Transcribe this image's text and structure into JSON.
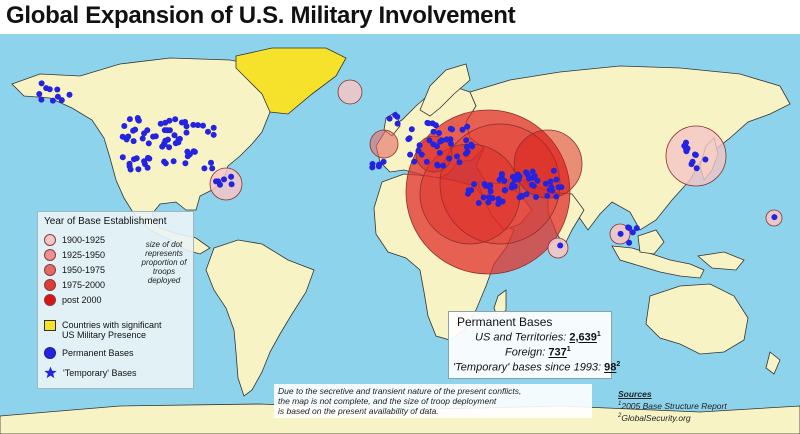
{
  "title": "Global Expansion of U.S. Military Involvement",
  "colors": {
    "ocean": "#8ed3ec",
    "land": "#f8f3c5",
    "presence_yellow": "#f6e22a",
    "base_blue": "#2323e0",
    "period_1900_1925": "#f4c6c6",
    "period_1925_1950": "#ec9090",
    "period_1950_1975": "#e56a66",
    "period_1975_2000": "#df3d34",
    "period_post_2000": "#d81414"
  },
  "legend": {
    "title": "Year of Base Establishment",
    "periods": [
      "1900-1925",
      "1925-1950",
      "1950-1975",
      "1975-2000",
      "post 2000"
    ],
    "size_note": "size of dot represents proportion of troops deployed",
    "presence_line1": "Countries with significant",
    "presence_line2": "US Military Presence",
    "permanent": "Permanent Bases",
    "temporary": "'Temporary' Bases"
  },
  "bases": {
    "heading": "Permanent Bases",
    "us_label": "US and Territories: ",
    "us_value": "2,639",
    "us_note": "1",
    "foreign_label": "Foreign: ",
    "foreign_value": "737",
    "foreign_note": "1",
    "temp_label": "'Temporary' bases since 1993: ",
    "temp_value": "98",
    "temp_note": "2"
  },
  "disclaimer": [
    "Due to the secretive and transient nature of the present conflicts,",
    "the map is not complete, and the size of troop deployment",
    "is based on the present availability of data."
  ],
  "sources": {
    "heading": "Sources",
    "items": [
      "2005 Base Structure Report",
      "GlobalSecurity.org"
    ]
  }
}
